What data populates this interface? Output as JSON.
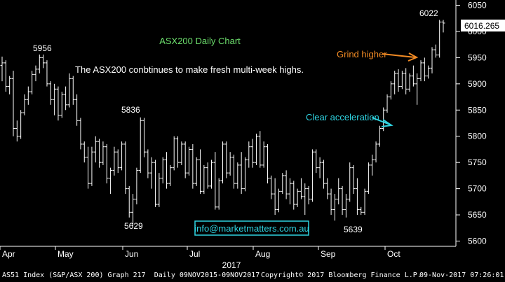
{
  "chart_data": {
    "type": "ohlc",
    "title": "ASX200 Daily Chart",
    "subtitle": "The ASX200 conbtinues to make fresh multi-week highs.",
    "ylim": [
      5590,
      6060
    ],
    "yticks": [
      5600,
      5650,
      5700,
      5750,
      5800,
      5850,
      5900,
      5950,
      6000,
      6050
    ],
    "xticks": [
      "Apr",
      "May",
      "Jun",
      "Jul",
      "Aug",
      "Sep",
      "Oct"
    ],
    "xaxis_year": "2017",
    "last_price": "6016.265",
    "annotations": {
      "high_label": "5956",
      "jun_high_label": "5836",
      "jun_low_label": "5629",
      "sep_low_label": "5639",
      "recent_high_label": "6022",
      "grind_text": "Grind higher",
      "accel_text": "Clear acceleration",
      "email": "info@marketmatters.com.au"
    },
    "colors": {
      "background": "#000000",
      "bars": "#ffffff",
      "title": "#6ddf6d",
      "grind": "#f08a24",
      "accel": "#2fd3e0",
      "email_border": "#2fd3e0"
    },
    "ohlc": [
      [
        5935,
        5952,
        5905,
        5940
      ],
      [
        5940,
        5945,
        5885,
        5895
      ],
      [
        5895,
        5915,
        5880,
        5910
      ],
      [
        5910,
        5925,
        5800,
        5815
      ],
      [
        5815,
        5830,
        5790,
        5800
      ],
      [
        5800,
        5850,
        5795,
        5845
      ],
      [
        5845,
        5880,
        5840,
        5870
      ],
      [
        5870,
        5895,
        5860,
        5885
      ],
      [
        5885,
        5925,
        5880,
        5918
      ],
      [
        5918,
        5935,
        5905,
        5928
      ],
      [
        5928,
        5956,
        5920,
        5950
      ],
      [
        5950,
        5956,
        5930,
        5940
      ],
      [
        5940,
        5945,
        5895,
        5900
      ],
      [
        5900,
        5905,
        5860,
        5870
      ],
      [
        5870,
        5900,
        5840,
        5890
      ],
      [
        5890,
        5895,
        5830,
        5840
      ],
      [
        5840,
        5885,
        5835,
        5880
      ],
      [
        5880,
        5895,
        5850,
        5860
      ],
      [
        5860,
        5920,
        5855,
        5910
      ],
      [
        5910,
        5915,
        5860,
        5870
      ],
      [
        5870,
        5880,
        5820,
        5830
      ],
      [
        5830,
        5835,
        5775,
        5785
      ],
      [
        5785,
        5790,
        5750,
        5760
      ],
      [
        5760,
        5780,
        5700,
        5710
      ],
      [
        5710,
        5780,
        5705,
        5770
      ],
      [
        5770,
        5800,
        5750,
        5790
      ],
      [
        5790,
        5795,
        5740,
        5750
      ],
      [
        5750,
        5790,
        5745,
        5780
      ],
      [
        5780,
        5785,
        5710,
        5720
      ],
      [
        5720,
        5740,
        5690,
        5735
      ],
      [
        5735,
        5780,
        5725,
        5770
      ],
      [
        5770,
        5775,
        5730,
        5740
      ],
      [
        5740,
        5790,
        5735,
        5785
      ],
      [
        5785,
        5790,
        5690,
        5700
      ],
      [
        5700,
        5705,
        5645,
        5655
      ],
      [
        5655,
        5690,
        5629,
        5680
      ],
      [
        5680,
        5740,
        5670,
        5735
      ],
      [
        5735,
        5836,
        5730,
        5830
      ],
      [
        5830,
        5835,
        5760,
        5770
      ],
      [
        5770,
        5775,
        5720,
        5730
      ],
      [
        5730,
        5760,
        5700,
        5750
      ],
      [
        5750,
        5755,
        5665,
        5670
      ],
      [
        5670,
        5730,
        5665,
        5720
      ],
      [
        5720,
        5760,
        5710,
        5755
      ],
      [
        5755,
        5770,
        5700,
        5710
      ],
      [
        5710,
        5745,
        5705,
        5740
      ],
      [
        5740,
        5800,
        5735,
        5795
      ],
      [
        5795,
        5800,
        5740,
        5750
      ],
      [
        5750,
        5790,
        5745,
        5785
      ],
      [
        5785,
        5790,
        5720,
        5730
      ],
      [
        5730,
        5780,
        5725,
        5775
      ],
      [
        5775,
        5785,
        5700,
        5710
      ],
      [
        5710,
        5760,
        5705,
        5755
      ],
      [
        5755,
        5775,
        5690,
        5695
      ],
      [
        5695,
        5745,
        5690,
        5740
      ],
      [
        5740,
        5750,
        5700,
        5705
      ],
      [
        5705,
        5755,
        5700,
        5750
      ],
      [
        5750,
        5770,
        5660,
        5665
      ],
      [
        5665,
        5720,
        5660,
        5715
      ],
      [
        5715,
        5790,
        5710,
        5785
      ],
      [
        5785,
        5790,
        5720,
        5730
      ],
      [
        5730,
        5770,
        5725,
        5760
      ],
      [
        5760,
        5765,
        5700,
        5710
      ],
      [
        5710,
        5750,
        5700,
        5745
      ],
      [
        5745,
        5770,
        5690,
        5700
      ],
      [
        5700,
        5760,
        5695,
        5755
      ],
      [
        5755,
        5790,
        5740,
        5780
      ],
      [
        5780,
        5795,
        5740,
        5750
      ],
      [
        5750,
        5805,
        5745,
        5800
      ],
      [
        5800,
        5810,
        5740,
        5745
      ],
      [
        5745,
        5790,
        5740,
        5780
      ],
      [
        5780,
        5785,
        5710,
        5720
      ],
      [
        5720,
        5725,
        5680,
        5690
      ],
      [
        5690,
        5720,
        5650,
        5660
      ],
      [
        5660,
        5700,
        5655,
        5695
      ],
      [
        5695,
        5730,
        5690,
        5725
      ],
      [
        5725,
        5735,
        5680,
        5690
      ],
      [
        5690,
        5720,
        5670,
        5710
      ],
      [
        5710,
        5715,
        5660,
        5670
      ],
      [
        5670,
        5700,
        5665,
        5695
      ],
      [
        5695,
        5720,
        5680,
        5685
      ],
      [
        5685,
        5710,
        5650,
        5700
      ],
      [
        5700,
        5705,
        5670,
        5680
      ],
      [
        5680,
        5775,
        5675,
        5770
      ],
      [
        5770,
        5775,
        5730,
        5740
      ],
      [
        5740,
        5760,
        5720,
        5750
      ],
      [
        5750,
        5755,
        5700,
        5710
      ],
      [
        5710,
        5720,
        5680,
        5690
      ],
      [
        5690,
        5700,
        5650,
        5660
      ],
      [
        5660,
        5690,
        5639,
        5680
      ],
      [
        5680,
        5720,
        5670,
        5700
      ],
      [
        5700,
        5705,
        5650,
        5660
      ],
      [
        5660,
        5690,
        5645,
        5680
      ],
      [
        5680,
        5750,
        5675,
        5740
      ],
      [
        5740,
        5745,
        5690,
        5700
      ],
      [
        5700,
        5720,
        5650,
        5660
      ],
      [
        5660,
        5665,
        5650,
        5655
      ],
      [
        5655,
        5700,
        5650,
        5695
      ],
      [
        5695,
        5750,
        5690,
        5745
      ],
      [
        5745,
        5765,
        5725,
        5755
      ],
      [
        5755,
        5790,
        5750,
        5785
      ],
      [
        5785,
        5820,
        5780,
        5815
      ],
      [
        5815,
        5855,
        5810,
        5850
      ],
      [
        5850,
        5880,
        5845,
        5875
      ],
      [
        5875,
        5905,
        5870,
        5900
      ],
      [
        5900,
        5925,
        5880,
        5920
      ],
      [
        5920,
        5928,
        5885,
        5895
      ],
      [
        5895,
        5925,
        5890,
        5920
      ],
      [
        5920,
        5930,
        5880,
        5890
      ],
      [
        5890,
        5920,
        5885,
        5915
      ],
      [
        5915,
        5935,
        5895,
        5900
      ],
      [
        5900,
        5920,
        5860,
        5910
      ],
      [
        5910,
        5945,
        5905,
        5940
      ],
      [
        5940,
        5950,
        5905,
        5915
      ],
      [
        5915,
        5935,
        5910,
        5930
      ],
      [
        5930,
        5970,
        5920,
        5965
      ],
      [
        5965,
        5975,
        5950,
        5955
      ],
      [
        5955,
        6022,
        5950,
        6018
      ],
      [
        6018,
        6022,
        5998,
        6016
      ]
    ]
  },
  "footer": {
    "left": "AS51 Index (S&P/ASX 200) Graph 217  Daily 09NOV2015-09NOV2017",
    "mid": "Copyright© 2017 Bloomberg Finance L.P.",
    "right": "09-Nov-2017 07:26:01"
  }
}
